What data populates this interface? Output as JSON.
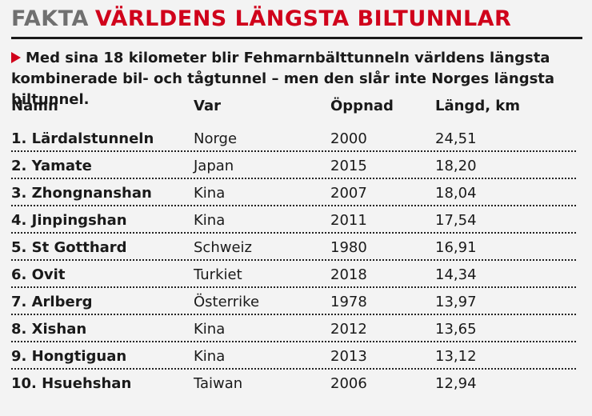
{
  "header": {
    "tag": "FAKTA",
    "title": "VÄRLDENS LÄNGSTA BILTUNNLAR",
    "accent_color": "#d0021b"
  },
  "lede": {
    "icon": "arrow-right-icon",
    "text": "Med sina 18 kilometer blir Fehmarnbälttunneln världens längsta kombinerade bil- och tågtunnel – men den slår inte Norges längsta biltunnel."
  },
  "table": {
    "columns": [
      "Namn",
      "Var",
      "Öppnad",
      "Längd, km"
    ],
    "rows": [
      {
        "name": "1. Lärdalstunneln",
        "var": "Norge",
        "open": "2000",
        "len": "24,51"
      },
      {
        "name": "2. Yamate",
        "var": "Japan",
        "open": "2015",
        "len": "18,20"
      },
      {
        "name": "3. Zhongnanshan",
        "var": "Kina",
        "open": "2007",
        "len": "18,04"
      },
      {
        "name": "4. Jinpingshan",
        "var": "Kina",
        "open": "2011",
        "len": "17,54"
      },
      {
        "name": "5. St Gotthard",
        "var": "Schweiz",
        "open": "1980",
        "len": "16,91"
      },
      {
        "name": "6. Ovit",
        "var": "Turkiet",
        "open": "2018",
        "len": "14,34"
      },
      {
        "name": "7. Arlberg",
        "var": "Österrike",
        "open": "1978",
        "len": "13,97"
      },
      {
        "name": "8. Xishan",
        "var": "Kina",
        "open": "2012",
        "len": "13,65"
      },
      {
        "name": "9. Hongtiguan",
        "var": "Kina",
        "open": "2013",
        "len": "13,12"
      },
      {
        "name": "10. Hsuehshan",
        "var": "Taiwan",
        "open": "2006",
        "len": "12,94"
      }
    ]
  }
}
